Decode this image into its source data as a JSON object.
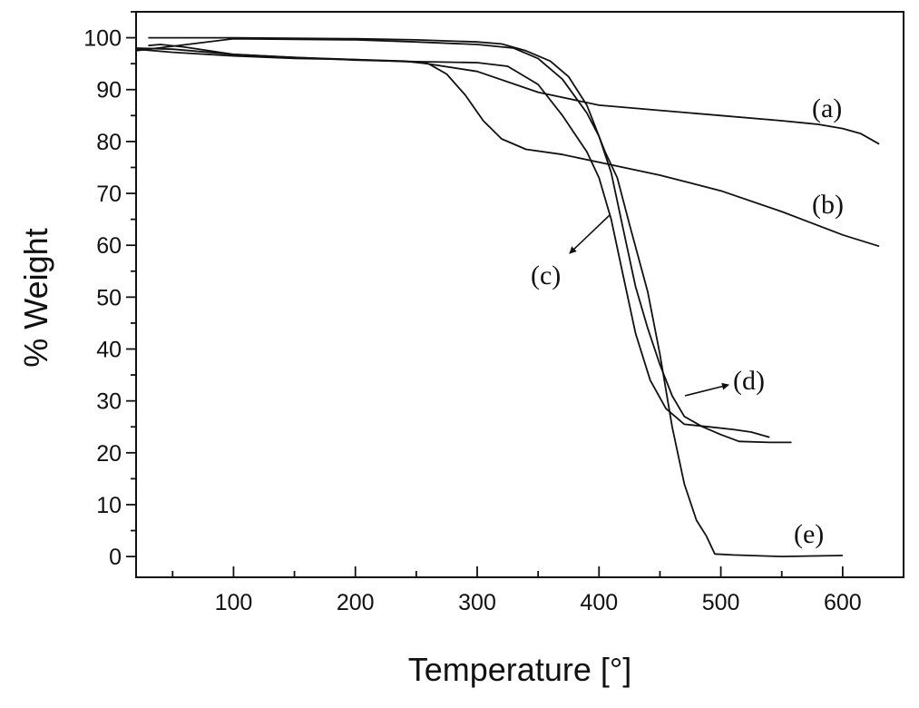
{
  "chart_data": {
    "type": "line",
    "xlabel": "Temperature [°]",
    "ylabel": "% Weight",
    "xlim": [
      20,
      650
    ],
    "ylim": [
      -4,
      105
    ],
    "xticks": [
      100,
      200,
      300,
      400,
      500,
      600
    ],
    "yticks": [
      0,
      10,
      20,
      30,
      40,
      50,
      60,
      70,
      80,
      90,
      100
    ],
    "grid": false,
    "series": [
      {
        "name": "(a)",
        "points": [
          [
            30,
            98.5
          ],
          [
            40,
            98.7
          ],
          [
            60,
            98.2
          ],
          [
            100,
            96.8
          ],
          [
            150,
            96.2
          ],
          [
            200,
            95.8
          ],
          [
            250,
            95.3
          ],
          [
            300,
            93.5
          ],
          [
            350,
            89.5
          ],
          [
            400,
            87
          ],
          [
            450,
            86
          ],
          [
            500,
            85
          ],
          [
            550,
            84
          ],
          [
            580,
            83.3
          ],
          [
            600,
            82.5
          ],
          [
            615,
            81.5
          ],
          [
            630,
            79.5
          ]
        ]
      },
      {
        "name": "(b)",
        "points": [
          [
            20,
            97.8
          ],
          [
            50,
            97.2
          ],
          [
            100,
            96.5
          ],
          [
            150,
            96
          ],
          [
            200,
            95.8
          ],
          [
            240,
            95.5
          ],
          [
            260,
            95
          ],
          [
            275,
            93
          ],
          [
            290,
            89
          ],
          [
            305,
            84
          ],
          [
            320,
            80.5
          ],
          [
            340,
            78.5
          ],
          [
            370,
            77.5
          ],
          [
            400,
            76
          ],
          [
            450,
            73.5
          ],
          [
            500,
            70.5
          ],
          [
            550,
            66.5
          ],
          [
            600,
            62
          ],
          [
            630,
            59.8
          ]
        ]
      },
      {
        "name": "(c)",
        "points": [
          [
            20,
            98
          ],
          [
            50,
            97.8
          ],
          [
            100,
            96.8
          ],
          [
            150,
            96.2
          ],
          [
            200,
            95.7
          ],
          [
            250,
            95.4
          ],
          [
            300,
            95.2
          ],
          [
            325,
            94.5
          ],
          [
            350,
            91
          ],
          [
            370,
            85
          ],
          [
            390,
            78
          ],
          [
            400,
            73
          ],
          [
            410,
            65
          ],
          [
            420,
            54
          ],
          [
            430,
            43
          ],
          [
            442,
            34
          ],
          [
            455,
            28.5
          ],
          [
            470,
            25.5
          ],
          [
            490,
            25
          ],
          [
            510,
            24.5
          ],
          [
            525,
            24
          ],
          [
            540,
            23
          ]
        ]
      },
      {
        "name": "(d)",
        "points": [
          [
            20,
            97.5
          ],
          [
            100,
            99.8
          ],
          [
            200,
            99.6
          ],
          [
            250,
            99.2
          ],
          [
            300,
            98.7
          ],
          [
            330,
            98
          ],
          [
            350,
            96
          ],
          [
            370,
            92
          ],
          [
            390,
            85.5
          ],
          [
            400,
            81
          ],
          [
            410,
            74
          ],
          [
            420,
            63
          ],
          [
            430,
            52
          ],
          [
            440,
            44
          ],
          [
            450,
            37
          ],
          [
            460,
            31
          ],
          [
            470,
            27
          ],
          [
            485,
            25
          ],
          [
            500,
            23.5
          ],
          [
            515,
            22.2
          ],
          [
            540,
            22
          ],
          [
            558,
            22
          ]
        ]
      },
      {
        "name": "(e)",
        "points": [
          [
            30,
            100
          ],
          [
            100,
            100
          ],
          [
            200,
            99.8
          ],
          [
            250,
            99.6
          ],
          [
            300,
            99.2
          ],
          [
            320,
            98.8
          ],
          [
            340,
            97.5
          ],
          [
            360,
            95.5
          ],
          [
            375,
            92.5
          ],
          [
            390,
            87
          ],
          [
            405,
            78
          ],
          [
            415,
            73
          ],
          [
            425,
            64
          ],
          [
            440,
            51
          ],
          [
            450,
            39
          ],
          [
            460,
            25
          ],
          [
            470,
            14
          ],
          [
            480,
            7
          ],
          [
            488,
            4
          ],
          [
            495,
            0.5
          ],
          [
            510,
            0.3
          ],
          [
            550,
            0
          ],
          [
            600,
            0.2
          ]
        ]
      }
    ],
    "annotations": [
      "(a)",
      "(b)",
      "(c)",
      "(d)",
      "(e)"
    ]
  }
}
